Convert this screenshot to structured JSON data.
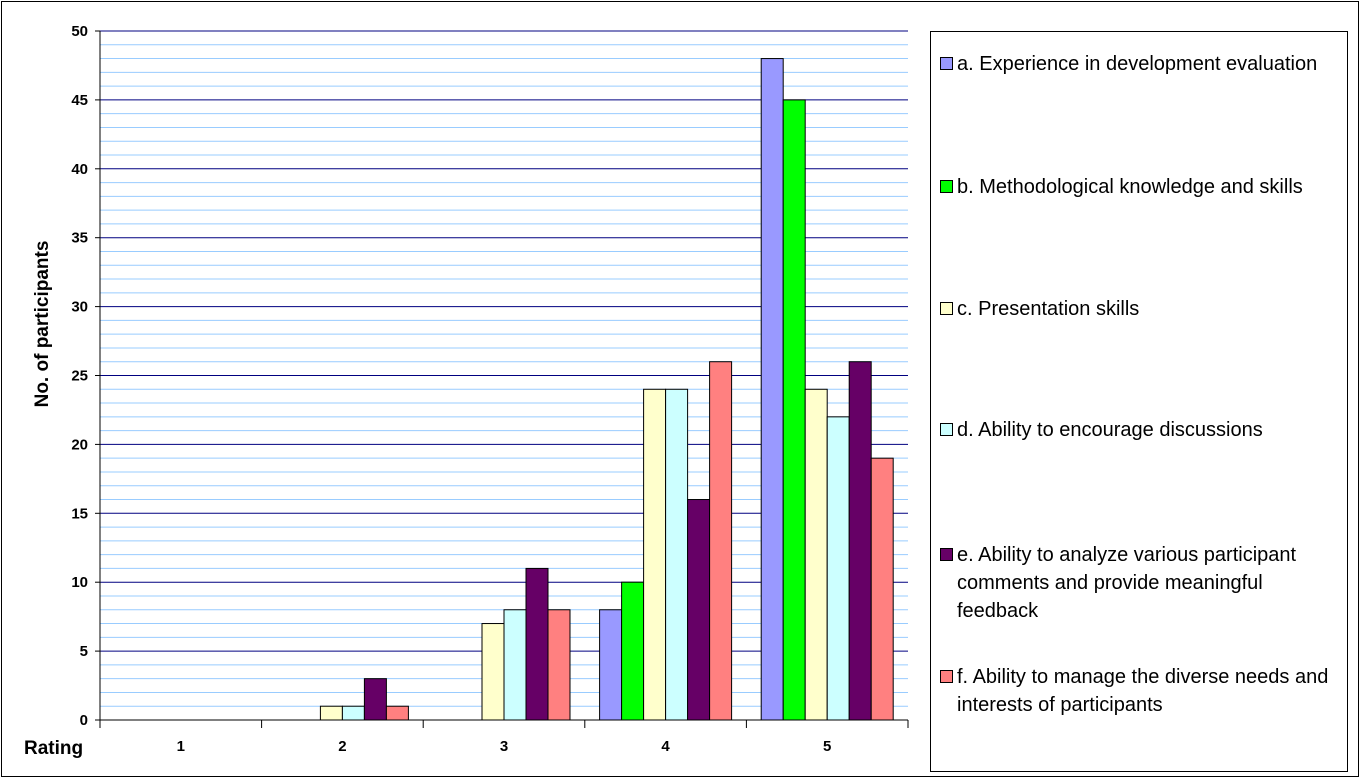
{
  "chart_data": {
    "type": "bar",
    "ylabel": "No. of participants",
    "xlabel": "Rating",
    "categories": [
      "1",
      "2",
      "3",
      "4",
      "5"
    ],
    "ylim": [
      0,
      50
    ],
    "ytick_labels": [
      "0",
      "5",
      "10",
      "15",
      "20",
      "25",
      "30",
      "35",
      "40",
      "45",
      "50"
    ],
    "grid": "on (horizontal major and minor lines)",
    "legend_position": "right",
    "series": [
      {
        "name": "a. Experience in development evaluation",
        "color": "#9999FF",
        "values": [
          0,
          0,
          0,
          8,
          48
        ]
      },
      {
        "name": "b. Methodological knowledge and skills",
        "color": "#00FF00",
        "values": [
          0,
          0,
          0,
          10,
          45
        ]
      },
      {
        "name": "c. Presentation skills",
        "color": "#FFFFCC",
        "values": [
          0,
          1,
          7,
          24,
          24
        ]
      },
      {
        "name": "d. Ability to encourage discussions",
        "color": "#CCFFFF",
        "values": [
          0,
          1,
          8,
          24,
          22
        ]
      },
      {
        "name": "e. Ability to analyze various participant comments and provide meaningful feedback",
        "color": "#660066",
        "values": [
          0,
          3,
          11,
          16,
          26
        ]
      },
      {
        "name": "f. Ability to manage the diverse needs and interests of participants",
        "color": "#FF8080",
        "values": [
          0,
          1,
          8,
          26,
          19
        ]
      }
    ]
  }
}
